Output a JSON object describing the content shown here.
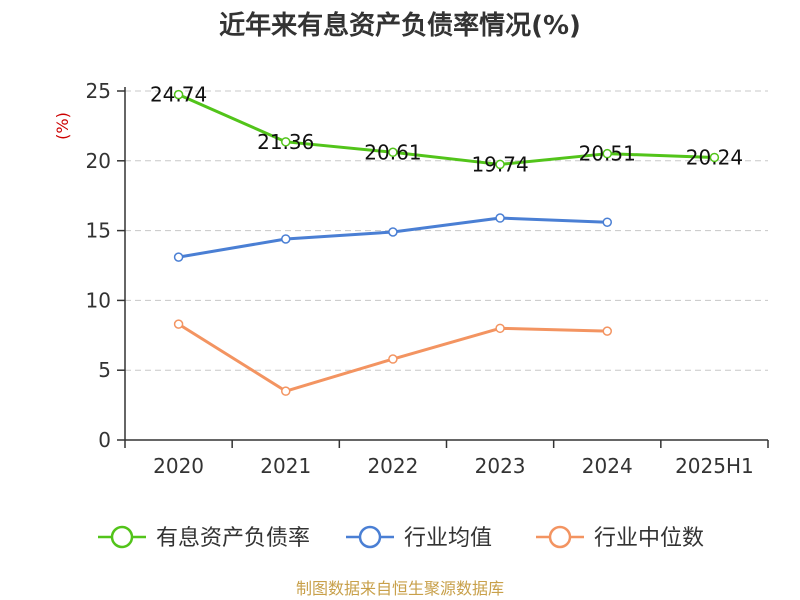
{
  "chart_data": {
    "type": "line",
    "title": "近年来有息资产负债率情况(%)",
    "ylabel": "(%)",
    "categories": [
      "2020",
      "2021",
      "2022",
      "2023",
      "2024",
      "2025H1"
    ],
    "ylim": [
      0,
      25
    ],
    "yticks": [
      "0",
      "5",
      "10",
      "15",
      "20",
      "25"
    ],
    "grid": true,
    "legend_position": "bottom",
    "series": [
      {
        "name": "有息资产负债率",
        "color": "#52c41a",
        "values": [
          24.74,
          21.36,
          20.61,
          19.74,
          20.51,
          20.24
        ],
        "labels": [
          "24.74",
          "21.36",
          "20.61",
          "19.74",
          "20.51",
          "20.24"
        ]
      },
      {
        "name": "行业均值",
        "color": "#4a7fd4",
        "values": [
          13.1,
          14.4,
          14.9,
          15.9,
          15.6,
          null
        ]
      },
      {
        "name": "行业中位数",
        "color": "#f39461",
        "values": [
          8.3,
          3.5,
          5.8,
          8.0,
          7.8,
          null
        ]
      }
    ]
  },
  "source": "制图数据来自恒生聚源数据库"
}
